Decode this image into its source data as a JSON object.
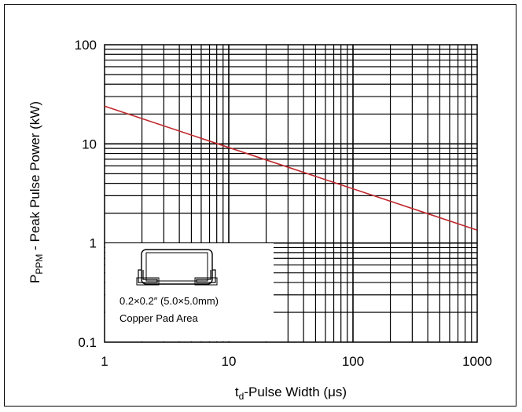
{
  "chart_data": {
    "type": "line",
    "x_scale": "log",
    "y_scale": "log",
    "xlim": [
      1,
      1000
    ],
    "ylim": [
      0.1,
      100
    ],
    "x_ticks": [
      1,
      10,
      100,
      1000
    ],
    "x_tick_labels": [
      "1",
      "10",
      "100",
      "1000"
    ],
    "y_ticks": [
      0.1,
      1,
      10,
      100
    ],
    "y_tick_labels": [
      "0.1",
      "1",
      "10",
      "100"
    ],
    "grid": true,
    "xlabel": {
      "main": "t",
      "sub": "d",
      "rest": "-Pulse Width (μs)"
    },
    "ylabel": {
      "main": "P",
      "sub": "PPM",
      "rest": " - Peak Pulse Power (kW)"
    },
    "series": [
      {
        "color": "#c0282d",
        "points": [
          [
            1,
            24.0
          ],
          [
            1000,
            1.35
          ]
        ]
      }
    ],
    "inset": {
      "lines": [
        "0.2×0.2″ (5.0×5.0mm)",
        "Copper Pad Area"
      ]
    }
  }
}
